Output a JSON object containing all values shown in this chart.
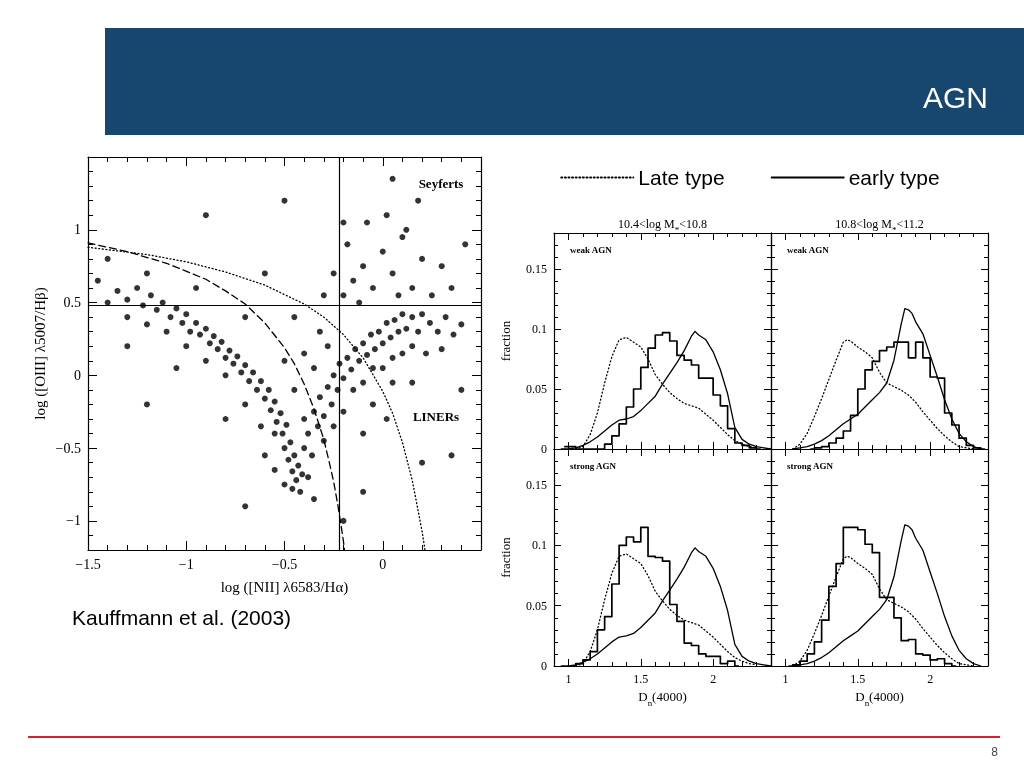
{
  "chart_data": [
    {
      "type": "scatter",
      "xlabel": "log ([NII] λ6583/Hα)",
      "ylabel": "log ([OIII] λ5007/Hβ)",
      "annotations": [
        "AGN",
        "Seyferts",
        "LINERs",
        "Kauffmann et al. (2003)",
        "8"
      ],
      "marker": "circle",
      "xlim": [
        -1.5,
        0.5
      ],
      "ylim": [
        -1.2,
        1.5
      ],
      "xticks": [
        {
          "value": -1.5,
          "label": "−1.5"
        },
        {
          "value": -1.4,
          "label": null
        },
        {
          "value": -1.3,
          "label": null
        },
        {
          "value": -1.2,
          "label": null
        },
        {
          "value": -1.1,
          "label": null
        },
        {
          "value": -1,
          "label": "−1"
        },
        {
          "value": -0.9,
          "label": null
        },
        {
          "value": -0.8,
          "label": null
        },
        {
          "value": -0.7,
          "label": null
        },
        {
          "value": -0.6,
          "label": null
        },
        {
          "value": -0.5,
          "label": "−0.5"
        },
        {
          "value": -0.4,
          "label": null
        },
        {
          "value": -0.3,
          "label": null
        },
        {
          "value": -0.2,
          "label": null
        },
        {
          "value": -0.1,
          "label": null
        },
        0,
        {
          "value": 0.1,
          "label": null
        },
        {
          "value": 0.2,
          "label": null
        },
        {
          "value": 0.3,
          "label": null
        },
        {
          "value": 0.4,
          "label": null
        }
      ],
      "yticks": [
        {
          "value": -1.1,
          "label": null
        },
        {
          "value": -1,
          "label": "−1"
        },
        {
          "value": -0.9,
          "label": null
        },
        {
          "value": -0.8,
          "label": null
        },
        {
          "value": -0.7,
          "label": null
        },
        {
          "value": -0.6,
          "label": null
        },
        {
          "value": -0.5,
          "label": "−0.5"
        },
        {
          "value": -0.4,
          "label": null
        },
        {
          "value": -0.3,
          "label": null
        },
        {
          "value": -0.2,
          "label": null
        },
        {
          "value": -0.1,
          "label": null
        },
        0,
        {
          "value": 0.1,
          "label": null
        },
        {
          "value": 0.2,
          "label": null
        },
        {
          "value": 0.3,
          "label": null
        },
        {
          "value": 0.4,
          "label": null
        },
        0.5,
        {
          "value": 0.6,
          "label": null
        },
        {
          "value": 0.7,
          "label": null
        },
        {
          "value": 0.8,
          "label": null
        },
        {
          "value": 0.9,
          "label": null
        },
        1,
        {
          "value": 1.1,
          "label": null
        },
        {
          "value": 1.2,
          "label": null
        },
        {
          "value": 1.3,
          "label": null
        },
        {
          "value": 1.4,
          "label": null
        }
      ],
      "ref_lines": [
        {
          "axis": "x",
          "value": -0.22,
          "color": "#000000"
        },
        {
          "axis": "y",
          "value": 0.48,
          "color": "#000000"
        }
      ],
      "series": [
        {
          "color": "#000000",
          "x": [
            -1.35,
            -1.3,
            -1.25,
            -1.22,
            -1.18,
            -1.15,
            -1.12,
            -1.08,
            -1.05,
            -1.02,
            -1,
            -0.98,
            -0.95,
            -0.93,
            -0.9,
            -0.88,
            -0.86,
            -0.84,
            -0.82,
            -0.8,
            -0.78,
            -0.76,
            -0.74,
            -0.72,
            -0.7,
            -0.68,
            -0.66,
            -0.64,
            -0.62,
            -0.6,
            -0.58,
            -0.57,
            -0.55,
            -0.54,
            -0.52,
            -0.51,
            -0.5,
            -0.49,
            -0.48,
            -0.47,
            -0.46,
            -0.45,
            -0.44,
            -0.43,
            -0.42,
            -0.46,
            -0.4,
            -0.41,
            -0.38,
            -0.4,
            -0.36,
            -0.35,
            -0.33,
            -0.32,
            -0.3,
            -0.28,
            -0.26,
            -0.25,
            -0.23,
            -0.22,
            -0.2,
            -0.18,
            -0.16,
            -0.14,
            -0.12,
            -0.1,
            -0.08,
            -0.06,
            -0.04,
            -0.02,
            0,
            0.02,
            0.04,
            0.06,
            0.08,
            0.1,
            0.12,
            0.15,
            0.18,
            0.2,
            0.24,
            0.28,
            0.32,
            0.36,
            0.4,
            -0.3,
            -0.25,
            -0.2,
            -0.15,
            -0.1,
            -0.05,
            0,
            0.05,
            0.1,
            0.15,
            0.22,
            0.3,
            -0.28,
            -0.35,
            -0.32,
            -0.4,
            -0.5,
            -0.45,
            -0.55,
            -0.6,
            -0.38,
            -0.35,
            -0.5,
            -0.55,
            -0.62,
            -0.7,
            -0.8,
            -0.9,
            -1,
            -1.1,
            -1.2,
            -1.3,
            -1.4,
            -1.45,
            -0.05,
            0.05,
            0.15,
            0.02,
            -0.1,
            -0.2,
            -0.15,
            -0.1,
            -0.05,
            0,
            0.05,
            0.1,
            0.15,
            0.2,
            -0.18,
            -0.08,
            0.02,
            0.12,
            -0.25,
            0.25,
            0.3,
            0.08,
            -0.12,
            0.18,
            -0.2,
            0.35,
            -0.3,
            -1.4,
            -1.2,
            -0.95,
            -1.3,
            -1.05,
            -0.7,
            -0.8,
            -0.6,
            -0.45,
            0.4,
            0.35,
            0.2,
            -0.1,
            -0.2,
            -0.7,
            -1.2,
            -0.9,
            0.05,
            -0.5,
            0.42
          ],
          "values": [
            0.58,
            0.52,
            0.6,
            0.48,
            0.55,
            0.45,
            0.5,
            0.4,
            0.46,
            0.36,
            0.42,
            0.3,
            0.36,
            0.28,
            0.32,
            0.22,
            0.27,
            0.18,
            0.23,
            0.12,
            0.17,
            0.08,
            0.13,
            0.02,
            0.07,
            -0.04,
            0.02,
            -0.1,
            -0.04,
            -0.16,
            -0.1,
            -0.24,
            -0.18,
            -0.32,
            -0.26,
            -0.4,
            -0.5,
            -0.34,
            -0.58,
            -0.46,
            -0.66,
            -0.55,
            -0.72,
            -0.62,
            -0.8,
            -0.78,
            -0.5,
            -0.68,
            -0.4,
            -0.3,
            -0.55,
            -0.25,
            -0.35,
            -0.15,
            -0.28,
            -0.08,
            -0.2,
            0,
            -0.1,
            0.08,
            -0.02,
            0.12,
            0.04,
            0.18,
            0.1,
            0.22,
            0.14,
            0.28,
            0.18,
            0.3,
            0.22,
            0.36,
            0.26,
            0.38,
            0.3,
            0.42,
            0.32,
            0.4,
            0.3,
            0.42,
            0.36,
            0.3,
            0.4,
            0.28,
            0.35,
            -0.45,
            -0.35,
            -0.25,
            -0.1,
            -0.05,
            0.05,
            0.05,
            0.12,
            0.15,
            0.2,
            0.15,
            0.18,
            0.2,
            0.05,
            0.3,
            0.15,
            0.1,
            -0.1,
            -0.4,
            -0.55,
            -0.7,
            -0.85,
            -0.75,
            -0.65,
            -0.35,
            -0.2,
            0,
            0.1,
            0.2,
            0.3,
            0.35,
            0.4,
            0.5,
            0.65,
            -0.2,
            -0.05,
            -0.05,
            -0.3,
            -0.4,
            0.55,
            0.65,
            0.75,
            0.6,
            0.85,
            0.7,
            0.95,
            0.6,
            0.8,
            0.9,
            1.05,
            1.1,
            1,
            0.7,
            0.55,
            0.75,
            0.55,
            0.5,
            1.2,
            1.05,
            0.6,
            0.55,
            0.8,
            0.7,
            0.6,
            0.2,
            0.05,
            0.4,
            -0.3,
            0.7,
            0.4,
            -0.1,
            -0.55,
            -0.6,
            -0.8,
            -1,
            -0.9,
            -0.2,
            1.1,
            1.35,
            1.2,
            0.9
          ]
        },
        {
          "type": "line",
          "color": "#000000",
          "line_style": "dashed",
          "marker": "none",
          "x": [
            -1.5,
            -1.3,
            -1.1,
            -0.9,
            -0.8,
            -0.7,
            -0.6,
            -0.5,
            -0.45,
            -0.4,
            -0.35,
            -0.3,
            -0.27,
            -0.25,
            -0.23,
            -0.21,
            -0.2,
            -0.195
          ],
          "values": [
            0.91,
            0.85,
            0.77,
            0.66,
            0.58,
            0.49,
            0.36,
            0.19,
            0.08,
            -0.06,
            -0.23,
            -0.44,
            -0.61,
            -0.73,
            -0.88,
            -1.05,
            -1.14,
            -1.2
          ]
        },
        {
          "type": "line",
          "color": "#000000",
          "line_style": "dotted",
          "marker": "none",
          "x": [
            -1.5,
            -1.2,
            -1,
            -0.8,
            -0.6,
            -0.4,
            -0.3,
            -0.2,
            -0.1,
            0,
            0.05,
            0.1,
            0.15,
            0.2,
            0.215
          ],
          "values": [
            0.88,
            0.83,
            0.78,
            0.71,
            0.62,
            0.49,
            0.4,
            0.28,
            0.12,
            -0.11,
            -0.26,
            -0.46,
            -0.72,
            -1.07,
            -1.2
          ]
        }
      ]
    },
    {
      "type": "line",
      "title": "10.4<log M$_{*}$<10.8",
      "ylabel": "fraction",
      "annotations": [
        "weak AGN"
      ],
      "legend": "top",
      "marker": "none",
      "tick_labels": "y",
      "xlim": [
        0.9,
        2.4
      ],
      "ylim": [
        0,
        0.18
      ],
      "xticks": [
        1,
        {
          "value": 1.1,
          "label": null
        },
        {
          "value": 1.2,
          "label": null
        },
        {
          "value": 1.3,
          "label": null
        },
        {
          "value": 1.4,
          "label": null
        },
        1.5,
        {
          "value": 1.6,
          "label": null
        },
        {
          "value": 1.7,
          "label": null
        },
        {
          "value": 1.8,
          "label": null
        },
        {
          "value": 1.9,
          "label": null
        },
        2,
        {
          "value": 2.1,
          "label": null
        },
        {
          "value": 2.2,
          "label": null
        },
        {
          "value": 2.3,
          "label": null
        }
      ],
      "yticks": [
        0,
        {
          "value": 0.01,
          "label": null
        },
        {
          "value": 0.02,
          "label": null
        },
        {
          "value": 0.03,
          "label": null
        },
        {
          "value": 0.04,
          "label": null
        },
        0.05,
        {
          "value": 0.06,
          "label": null
        },
        {
          "value": 0.07,
          "label": null
        },
        {
          "value": 0.08,
          "label": null
        },
        {
          "value": 0.09,
          "label": null
        },
        0.1,
        {
          "value": 0.11,
          "label": null
        },
        {
          "value": 0.12,
          "label": null
        },
        {
          "value": 0.13,
          "label": null
        },
        {
          "value": 0.14,
          "label": null
        },
        0.15,
        {
          "value": 0.16,
          "label": null
        },
        {
          "value": 0.17,
          "label": null
        }
      ],
      "series": [
        {
          "name": "Late type",
          "color": "#000000",
          "line_style": "dotted",
          "x": [
            1.05,
            1.1,
            1.15,
            1.2,
            1.25,
            1.3,
            1.35,
            1.4,
            1.45,
            1.5,
            1.55,
            1.6,
            1.65,
            1.7,
            1.75,
            1.8,
            1.85,
            1.9,
            1.95,
            2,
            2.05,
            2.1,
            2.15,
            2.2,
            2.25,
            2.3
          ],
          "values": [
            0,
            0.002,
            0.012,
            0.03,
            0.055,
            0.077,
            0.091,
            0.093,
            0.089,
            0.085,
            0.075,
            0.062,
            0.054,
            0.047,
            0.042,
            0.038,
            0.036,
            0.034,
            0.029,
            0.024,
            0.018,
            0.012,
            0.007,
            0.004,
            0.002,
            0.001
          ]
        },
        {
          "name": "early type",
          "color": "#000000",
          "line_style": "solid",
          "x": [
            0.95,
            1,
            1.05,
            1.1,
            1.15,
            1.2,
            1.25,
            1.3,
            1.35,
            1.4,
            1.45,
            1.5,
            1.55,
            1.6,
            1.65,
            1.7,
            1.75,
            1.8,
            1.85,
            1.875,
            1.9,
            1.95,
            2,
            2.05,
            2.1,
            2.15,
            2.2,
            2.25,
            2.3,
            2.35,
            2.4
          ],
          "values": [
            0,
            0,
            0.001,
            0.003,
            0.006,
            0.01,
            0.015,
            0.02,
            0.024,
            0.025,
            0.027,
            0.032,
            0.038,
            0.044,
            0.054,
            0.063,
            0.072,
            0.082,
            0.094,
            0.098,
            0.095,
            0.091,
            0.081,
            0.066,
            0.046,
            0.018,
            0.008,
            0.004,
            0.002,
            0.001,
            0
          ]
        },
        {
          "type": "step",
          "color": "#000000",
          "line_style": "solid",
          "x": [
            0.975,
            1.025,
            1.075,
            1.125,
            1.175,
            1.225,
            1.275,
            1.325,
            1.375,
            1.425,
            1.475,
            1.525,
            1.575,
            1.625,
            1.675,
            1.725,
            1.775,
            1.825,
            1.875,
            1.925,
            1.975,
            2.025,
            2.075,
            2.125,
            2.175,
            2.225,
            2.275,
            2.325
          ],
          "values": [
            0.002,
            0.002,
            0,
            0,
            0,
            0,
            0.004,
            0.011,
            0.021,
            0.035,
            0.05,
            0.068,
            0.084,
            0.095,
            0.097,
            0.09,
            0.078,
            0.074,
            0.07,
            0.059,
            0.059,
            0.045,
            0.036,
            0.017,
            0.005,
            0.003,
            0.001,
            0
          ]
        }
      ]
    },
    {
      "type": "line",
      "title": "10.8<log M$_{*}$<11.2",
      "annotations": [
        "weak AGN"
      ],
      "marker": "none",
      "tick_labels": false,
      "xlim": [
        0.9,
        2.4
      ],
      "ylim": [
        0,
        0.18
      ],
      "xticks": [
        1,
        {
          "value": 1.1,
          "label": null
        },
        {
          "value": 1.2,
          "label": null
        },
        {
          "value": 1.3,
          "label": null
        },
        {
          "value": 1.4,
          "label": null
        },
        1.5,
        {
          "value": 1.6,
          "label": null
        },
        {
          "value": 1.7,
          "label": null
        },
        {
          "value": 1.8,
          "label": null
        },
        {
          "value": 1.9,
          "label": null
        },
        2,
        {
          "value": 2.1,
          "label": null
        },
        {
          "value": 2.2,
          "label": null
        },
        {
          "value": 2.3,
          "label": null
        }
      ],
      "yticks": [
        0,
        {
          "value": 0.01,
          "label": null
        },
        {
          "value": 0.02,
          "label": null
        },
        {
          "value": 0.03,
          "label": null
        },
        {
          "value": 0.04,
          "label": null
        },
        0.05,
        {
          "value": 0.06,
          "label": null
        },
        {
          "value": 0.07,
          "label": null
        },
        {
          "value": 0.08,
          "label": null
        },
        {
          "value": 0.09,
          "label": null
        },
        0.1,
        {
          "value": 0.11,
          "label": null
        },
        {
          "value": 0.12,
          "label": null
        },
        {
          "value": 0.13,
          "label": null
        },
        {
          "value": 0.14,
          "label": null
        },
        0.15,
        {
          "value": 0.16,
          "label": null
        },
        {
          "value": 0.17,
          "label": null
        }
      ],
      "series": [
        {
          "color": "#000000",
          "line_style": "dotted",
          "x": [
            1.05,
            1.1,
            1.15,
            1.2,
            1.25,
            1.3,
            1.35,
            1.4,
            1.425,
            1.45,
            1.5,
            1.55,
            1.6,
            1.65,
            1.7,
            1.75,
            1.8,
            1.85,
            1.9,
            1.95,
            2,
            2.05,
            2.1,
            2.15,
            2.2,
            2.25,
            2.3
          ],
          "values": [
            0,
            0.004,
            0.013,
            0.027,
            0.042,
            0.058,
            0.074,
            0.089,
            0.091,
            0.09,
            0.085,
            0.081,
            0.076,
            0.064,
            0.055,
            0.052,
            0.049,
            0.045,
            0.039,
            0.031,
            0.024,
            0.017,
            0.011,
            0.006,
            0.002,
            0.001,
            0
          ]
        },
        {
          "color": "#000000",
          "line_style": "solid",
          "x": [
            1.05,
            1.1,
            1.15,
            1.2,
            1.25,
            1.3,
            1.35,
            1.4,
            1.45,
            1.5,
            1.55,
            1.6,
            1.65,
            1.7,
            1.75,
            1.8,
            1.825,
            1.85,
            1.875,
            1.9,
            1.95,
            2,
            2.05,
            2.1,
            2.15,
            2.2,
            2.25,
            2.3,
            2.35
          ],
          "values": [
            0,
            0.001,
            0.002,
            0.004,
            0.007,
            0.011,
            0.016,
            0.021,
            0.025,
            0.029,
            0.035,
            0.041,
            0.047,
            0.055,
            0.074,
            0.104,
            0.117,
            0.116,
            0.113,
            0.106,
            0.096,
            0.078,
            0.06,
            0.041,
            0.025,
            0.013,
            0.006,
            0.002,
            0
          ]
        },
        {
          "type": "step",
          "color": "#000000",
          "line_style": "solid",
          "x": [
            1.175,
            1.225,
            1.275,
            1.325,
            1.375,
            1.425,
            1.475,
            1.525,
            1.575,
            1.625,
            1.675,
            1.725,
            1.775,
            1.825,
            1.875,
            1.925,
            1.975,
            2.025,
            2.075,
            2.125,
            2.175,
            2.225,
            2.275,
            2.325,
            2.375
          ],
          "values": [
            0,
            0.001,
            0.002,
            0.005,
            0.009,
            0.015,
            0.028,
            0.05,
            0.066,
            0.073,
            0.082,
            0.085,
            0.089,
            0.089,
            0.076,
            0.089,
            0.076,
            0.06,
            0.059,
            0.03,
            0.02,
            0.009,
            0.003,
            0.001,
            0
          ]
        }
      ]
    },
    {
      "type": "line",
      "xlabel": "D$_{n}$(4000)",
      "ylabel": "fraction",
      "annotations": [
        "strong AGN"
      ],
      "marker": "none",
      "xlim": [
        0.9,
        2.4
      ],
      "ylim": [
        0,
        0.18
      ],
      "xticks": [
        1,
        {
          "value": 1.1,
          "label": null
        },
        {
          "value": 1.2,
          "label": null
        },
        {
          "value": 1.3,
          "label": null
        },
        {
          "value": 1.4,
          "label": null
        },
        1.5,
        {
          "value": 1.6,
          "label": null
        },
        {
          "value": 1.7,
          "label": null
        },
        {
          "value": 1.8,
          "label": null
        },
        {
          "value": 1.9,
          "label": null
        },
        2,
        {
          "value": 2.1,
          "label": null
        },
        {
          "value": 2.2,
          "label": null
        },
        {
          "value": 2.3,
          "label": null
        }
      ],
      "yticks": [
        0,
        {
          "value": 0.01,
          "label": null
        },
        {
          "value": 0.02,
          "label": null
        },
        {
          "value": 0.03,
          "label": null
        },
        {
          "value": 0.04,
          "label": null
        },
        0.05,
        {
          "value": 0.06,
          "label": null
        },
        {
          "value": 0.07,
          "label": null
        },
        {
          "value": 0.08,
          "label": null
        },
        {
          "value": 0.09,
          "label": null
        },
        0.1,
        {
          "value": 0.11,
          "label": null
        },
        {
          "value": 0.12,
          "label": null
        },
        {
          "value": 0.13,
          "label": null
        },
        {
          "value": 0.14,
          "label": null
        },
        0.15,
        {
          "value": 0.16,
          "label": null
        },
        {
          "value": 0.17,
          "label": null
        }
      ],
      "series": [
        {
          "color": "#000000",
          "line_style": "dotted",
          "x": [
            1.05,
            1.1,
            1.15,
            1.2,
            1.25,
            1.3,
            1.35,
            1.4,
            1.45,
            1.5,
            1.55,
            1.6,
            1.65,
            1.7,
            1.75,
            1.8,
            1.85,
            1.9,
            1.95,
            2,
            2.05,
            2.1,
            2.15,
            2.2,
            2.25,
            2.3
          ],
          "values": [
            0,
            0.002,
            0.012,
            0.03,
            0.055,
            0.077,
            0.091,
            0.093,
            0.089,
            0.085,
            0.075,
            0.062,
            0.054,
            0.047,
            0.042,
            0.038,
            0.036,
            0.034,
            0.029,
            0.024,
            0.018,
            0.012,
            0.007,
            0.004,
            0.002,
            0.001
          ]
        },
        {
          "color": "#000000",
          "line_style": "solid",
          "x": [
            0.95,
            1,
            1.05,
            1.1,
            1.15,
            1.2,
            1.25,
            1.3,
            1.35,
            1.4,
            1.45,
            1.5,
            1.55,
            1.6,
            1.65,
            1.7,
            1.75,
            1.8,
            1.85,
            1.875,
            1.9,
            1.95,
            2,
            2.05,
            2.1,
            2.15,
            2.2,
            2.25,
            2.3,
            2.35,
            2.4
          ],
          "values": [
            0,
            0,
            0.001,
            0.003,
            0.006,
            0.01,
            0.015,
            0.02,
            0.024,
            0.025,
            0.027,
            0.032,
            0.038,
            0.044,
            0.054,
            0.063,
            0.072,
            0.082,
            0.094,
            0.098,
            0.095,
            0.091,
            0.081,
            0.066,
            0.046,
            0.018,
            0.008,
            0.004,
            0.002,
            0.001,
            0
          ]
        },
        {
          "type": "step",
          "color": "#000000",
          "line_style": "solid",
          "x": [
            1.025,
            1.075,
            1.125,
            1.175,
            1.225,
            1.275,
            1.325,
            1.375,
            1.425,
            1.475,
            1.525,
            1.575,
            1.625,
            1.675,
            1.725,
            1.775,
            1.825,
            1.875,
            1.925,
            1.975,
            2.025,
            2.075,
            2.125,
            2.175
          ],
          "values": [
            0,
            0.002,
            0.005,
            0.012,
            0.03,
            0.041,
            0.068,
            0.1,
            0.107,
            0.103,
            0.115,
            0.091,
            0.09,
            0.087,
            0.051,
            0.037,
            0.019,
            0.017,
            0.01,
            0.008,
            0.008,
            0.002,
            0.004,
            0
          ]
        }
      ]
    },
    {
      "type": "line",
      "xlabel": "D$_{n}$(4000)",
      "annotations": [
        "strong AGN"
      ],
      "marker": "none",
      "tick_labels": "x",
      "xlim": [
        0.9,
        2.4
      ],
      "ylim": [
        0,
        0.18
      ],
      "xticks": [
        1,
        {
          "value": 1.1,
          "label": null
        },
        {
          "value": 1.2,
          "label": null
        },
        {
          "value": 1.3,
          "label": null
        },
        {
          "value": 1.4,
          "label": null
        },
        1.5,
        {
          "value": 1.6,
          "label": null
        },
        {
          "value": 1.7,
          "label": null
        },
        {
          "value": 1.8,
          "label": null
        },
        {
          "value": 1.9,
          "label": null
        },
        2,
        {
          "value": 2.1,
          "label": null
        },
        {
          "value": 2.2,
          "label": null
        },
        {
          "value": 2.3,
          "label": null
        }
      ],
      "yticks": [
        0,
        {
          "value": 0.01,
          "label": null
        },
        {
          "value": 0.02,
          "label": null
        },
        {
          "value": 0.03,
          "label": null
        },
        {
          "value": 0.04,
          "label": null
        },
        0.05,
        {
          "value": 0.06,
          "label": null
        },
        {
          "value": 0.07,
          "label": null
        },
        {
          "value": 0.08,
          "label": null
        },
        {
          "value": 0.09,
          "label": null
        },
        0.1,
        {
          "value": 0.11,
          "label": null
        },
        {
          "value": 0.12,
          "label": null
        },
        {
          "value": 0.13,
          "label": null
        },
        {
          "value": 0.14,
          "label": null
        },
        0.15,
        {
          "value": 0.16,
          "label": null
        },
        {
          "value": 0.17,
          "label": null
        }
      ],
      "series": [
        {
          "color": "#000000",
          "line_style": "dotted",
          "x": [
            1.05,
            1.1,
            1.15,
            1.2,
            1.25,
            1.3,
            1.35,
            1.4,
            1.425,
            1.45,
            1.5,
            1.55,
            1.6,
            1.65,
            1.7,
            1.75,
            1.8,
            1.85,
            1.9,
            1.95,
            2,
            2.05,
            2.1,
            2.15,
            2.2,
            2.25,
            2.3
          ],
          "values": [
            0,
            0.004,
            0.013,
            0.027,
            0.042,
            0.058,
            0.074,
            0.089,
            0.091,
            0.09,
            0.085,
            0.081,
            0.076,
            0.064,
            0.055,
            0.052,
            0.049,
            0.045,
            0.039,
            0.031,
            0.024,
            0.017,
            0.011,
            0.006,
            0.002,
            0.001,
            0
          ]
        },
        {
          "color": "#000000",
          "line_style": "solid",
          "x": [
            1.05,
            1.1,
            1.15,
            1.2,
            1.25,
            1.3,
            1.35,
            1.4,
            1.45,
            1.5,
            1.55,
            1.6,
            1.65,
            1.7,
            1.75,
            1.8,
            1.825,
            1.85,
            1.875,
            1.9,
            1.95,
            2,
            2.05,
            2.1,
            2.15,
            2.2,
            2.25,
            2.3,
            2.35
          ],
          "values": [
            0,
            0.001,
            0.002,
            0.004,
            0.007,
            0.011,
            0.016,
            0.021,
            0.025,
            0.029,
            0.035,
            0.041,
            0.047,
            0.055,
            0.074,
            0.104,
            0.117,
            0.116,
            0.113,
            0.106,
            0.096,
            0.078,
            0.06,
            0.041,
            0.025,
            0.013,
            0.006,
            0.002,
            0
          ]
        },
        {
          "type": "step",
          "color": "#000000",
          "line_style": "solid",
          "x": [
            1.025,
            1.075,
            1.125,
            1.175,
            1.225,
            1.275,
            1.325,
            1.375,
            1.425,
            1.475,
            1.525,
            1.575,
            1.625,
            1.675,
            1.725,
            1.775,
            1.825,
            1.875,
            1.925,
            1.975,
            2.025,
            2.075,
            2.125,
            2.175
          ],
          "values": [
            0,
            0.001,
            0.004,
            0.01,
            0.02,
            0.038,
            0.066,
            0.085,
            0.115,
            0.115,
            0.113,
            0.101,
            0.094,
            0.057,
            0.057,
            0.04,
            0.021,
            0.022,
            0.01,
            0.009,
            0.005,
            0.006,
            0.002,
            0
          ]
        }
      ]
    }
  ]
}
